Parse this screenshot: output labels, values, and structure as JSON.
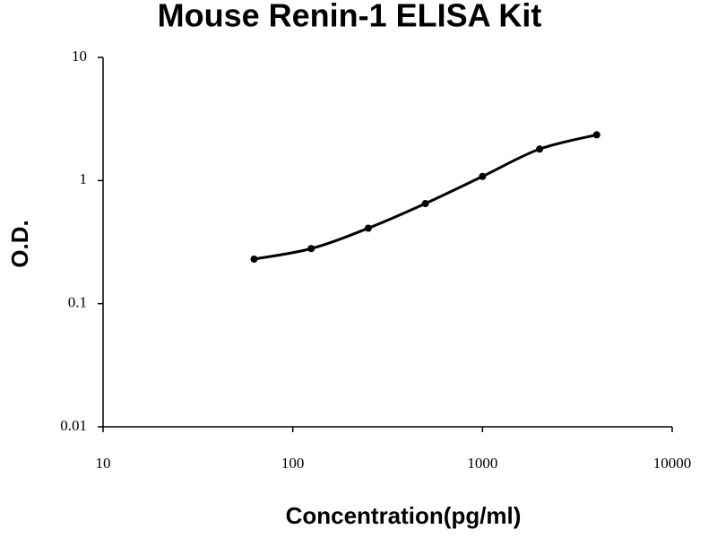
{
  "chart_data": {
    "type": "scatter",
    "title": "Mouse Renin-1 ELISA Kit",
    "x_label": "Concentration(pg/ml)",
    "y_label": "O.D.",
    "x": [
      62.5,
      125,
      250,
      500,
      1000,
      2000,
      4000
    ],
    "values": [
      0.23,
      0.28,
      0.41,
      0.65,
      1.08,
      1.8,
      2.35
    ],
    "color": "#000000",
    "xscale": "log",
    "yscale": "log",
    "xlim": [
      10,
      10000
    ],
    "ylim": [
      0.01,
      10
    ],
    "xticks": [
      10,
      100,
      1000,
      10000
    ],
    "yticks": [
      0.01,
      0.1,
      1,
      10
    ],
    "smooth_line": true
  }
}
